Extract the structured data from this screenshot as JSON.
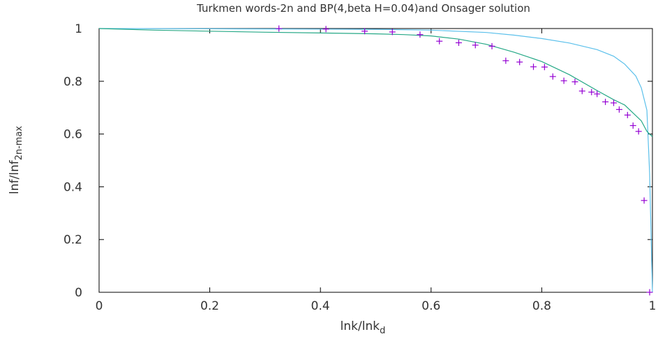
{
  "chart_data": {
    "type": "line",
    "title": "Turkmen words-2n and BP(4,beta H=0.04)and Onsager solution",
    "xlabel": {
      "main": "lnk/lnk",
      "sub": "d"
    },
    "ylabel": {
      "main": "lnf/lnf",
      "sub": "2n-max"
    },
    "xlim": [
      0,
      1
    ],
    "ylim": [
      0,
      1
    ],
    "x_ticks": [
      "0",
      "0.2",
      "0.4",
      "0.6",
      "0.8",
      "1"
    ],
    "y_ticks": [
      "0",
      "0.2",
      "0.4",
      "0.6",
      "0.8",
      "1"
    ],
    "grid": false,
    "legend": "none",
    "series": [
      {
        "style": "line",
        "color": "#5bc0eb",
        "points": [
          [
            0.0,
            1.0
          ],
          [
            0.2,
            0.999
          ],
          [
            0.4,
            0.998
          ],
          [
            0.5,
            0.997
          ],
          [
            0.6,
            0.994
          ],
          [
            0.7,
            0.985
          ],
          [
            0.75,
            0.975
          ],
          [
            0.8,
            0.962
          ],
          [
            0.85,
            0.945
          ],
          [
            0.9,
            0.92
          ],
          [
            0.93,
            0.895
          ],
          [
            0.95,
            0.865
          ],
          [
            0.97,
            0.82
          ],
          [
            0.98,
            0.775
          ],
          [
            0.99,
            0.69
          ],
          [
            0.995,
            0.45
          ],
          [
            1.0,
            0.0
          ]
        ]
      },
      {
        "style": "line",
        "color": "#25a886",
        "points": [
          [
            0.0,
            1.0
          ],
          [
            0.1,
            0.994
          ],
          [
            0.2,
            0.99
          ],
          [
            0.3,
            0.986
          ],
          [
            0.4,
            0.983
          ],
          [
            0.5,
            0.98
          ],
          [
            0.55,
            0.977
          ],
          [
            0.6,
            0.972
          ],
          [
            0.65,
            0.96
          ],
          [
            0.7,
            0.94
          ],
          [
            0.75,
            0.91
          ],
          [
            0.8,
            0.875
          ],
          [
            0.85,
            0.825
          ],
          [
            0.9,
            0.765
          ],
          [
            0.93,
            0.73
          ],
          [
            0.95,
            0.71
          ],
          [
            0.98,
            0.65
          ],
          [
            0.99,
            0.61
          ],
          [
            1.0,
            0.59
          ]
        ]
      },
      {
        "style": "markers",
        "color": "#9400d3",
        "points": [
          [
            0.325,
            1.0
          ],
          [
            0.41,
            0.998
          ],
          [
            0.48,
            0.99
          ],
          [
            0.53,
            0.987
          ],
          [
            0.58,
            0.977
          ],
          [
            0.615,
            0.952
          ],
          [
            0.65,
            0.946
          ],
          [
            0.68,
            0.937
          ],
          [
            0.71,
            0.933
          ],
          [
            0.735,
            0.878
          ],
          [
            0.76,
            0.873
          ],
          [
            0.785,
            0.855
          ],
          [
            0.805,
            0.854
          ],
          [
            0.82,
            0.818
          ],
          [
            0.84,
            0.802
          ],
          [
            0.86,
            0.798
          ],
          [
            0.873,
            0.763
          ],
          [
            0.89,
            0.759
          ],
          [
            0.9,
            0.752
          ],
          [
            0.915,
            0.722
          ],
          [
            0.93,
            0.718
          ],
          [
            0.94,
            0.693
          ],
          [
            0.955,
            0.672
          ],
          [
            0.965,
            0.632
          ],
          [
            0.975,
            0.61
          ],
          [
            0.985,
            0.348
          ],
          [
            0.995,
            0.0
          ]
        ]
      }
    ]
  }
}
